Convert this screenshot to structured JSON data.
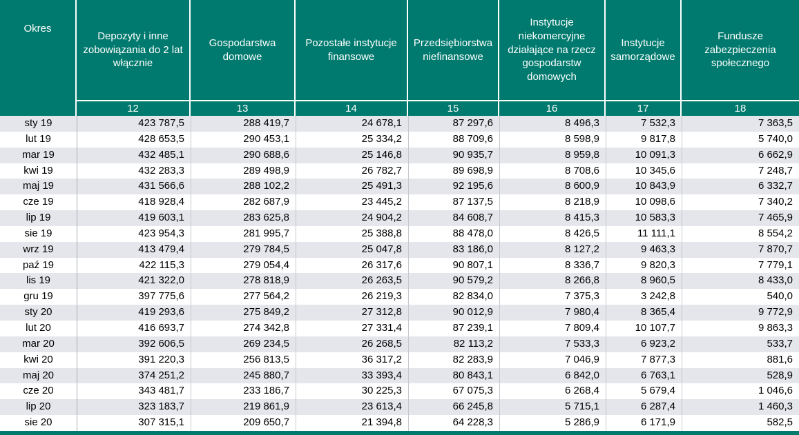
{
  "colors": {
    "header_bg": "#007A6E",
    "header_text": "#FFFFFF",
    "stripe_bg": "#E4E6EB",
    "row_bg": "#FFFFFF",
    "body_text": "#000000"
  },
  "table": {
    "period_column": {
      "label": "Okres"
    },
    "columns": [
      {
        "label": "Depozyty i inne zobowiązania do 2 lat włącznie",
        "code": "12"
      },
      {
        "label": "Gospodarstwa domowe",
        "code": "13"
      },
      {
        "label": "Pozostałe instytucje finansowe",
        "code": "14"
      },
      {
        "label": "Przedsiębiorstwa niefinansowe",
        "code": "15"
      },
      {
        "label": "Instytucje niekomercyjne działające na rzecz gospodarstw domowych",
        "code": "16"
      },
      {
        "label": "Instytucje samorządowe",
        "code": "17"
      },
      {
        "label": "Fundusze zabezpieczenia społecznego",
        "code": "18"
      }
    ],
    "rows": [
      {
        "period": "sty 19",
        "values": [
          "423 787,5",
          "288 419,7",
          "24 678,1",
          "87 297,6",
          "8 496,3",
          "7 532,3",
          "7 363,5"
        ]
      },
      {
        "period": "lut 19",
        "values": [
          "428 653,5",
          "290 453,1",
          "25 334,2",
          "88 709,6",
          "8 598,9",
          "9 817,8",
          "5 740,0"
        ]
      },
      {
        "period": "mar 19",
        "values": [
          "432 485,1",
          "290 688,6",
          "25 146,8",
          "90 935,7",
          "8 959,8",
          "10 091,3",
          "6 662,9"
        ]
      },
      {
        "period": "kwi 19",
        "values": [
          "432 283,3",
          "289 498,9",
          "26 782,7",
          "89 698,9",
          "8 708,6",
          "10 345,6",
          "7 248,7"
        ]
      },
      {
        "period": "maj 19",
        "values": [
          "431 566,6",
          "288 102,2",
          "25 491,3",
          "92 195,6",
          "8 600,9",
          "10 843,9",
          "6 332,7"
        ]
      },
      {
        "period": "cze 19",
        "values": [
          "418 928,4",
          "282 687,9",
          "23 445,2",
          "87 137,5",
          "8 218,9",
          "10 098,6",
          "7 340,2"
        ]
      },
      {
        "period": "lip 19",
        "values": [
          "419 603,1",
          "283 625,8",
          "24 904,2",
          "84 608,7",
          "8 415,3",
          "10 583,3",
          "7 465,9"
        ]
      },
      {
        "period": "sie 19",
        "values": [
          "423 954,3",
          "281 995,7",
          "25 388,8",
          "88 478,0",
          "8 426,5",
          "11 111,1",
          "8 554,2"
        ]
      },
      {
        "period": "wrz 19",
        "values": [
          "413 479,4",
          "279 784,5",
          "25 047,8",
          "83 186,0",
          "8 127,2",
          "9 463,3",
          "7 870,7"
        ]
      },
      {
        "period": "paź 19",
        "values": [
          "422 115,3",
          "279 054,4",
          "26 317,6",
          "90 807,1",
          "8 336,7",
          "9 820,3",
          "7 779,1"
        ]
      },
      {
        "period": "lis 19",
        "values": [
          "421 322,0",
          "278 818,9",
          "26 263,5",
          "90 579,2",
          "8 266,8",
          "8 960,5",
          "8 433,0"
        ]
      },
      {
        "period": "gru 19",
        "values": [
          "397 775,6",
          "277 564,2",
          "26 219,3",
          "82 834,0",
          "7 375,3",
          "3 242,8",
          "540,0"
        ]
      },
      {
        "period": "sty 20",
        "values": [
          "419 293,6",
          "275 849,2",
          "27 312,8",
          "90 012,9",
          "7 980,4",
          "8 365,4",
          "9 772,9"
        ]
      },
      {
        "period": "lut 20",
        "values": [
          "416 693,7",
          "274 342,8",
          "27 331,4",
          "87 239,1",
          "7 809,4",
          "10 107,7",
          "9 863,3"
        ]
      },
      {
        "period": "mar 20",
        "values": [
          "392 606,5",
          "269 234,5",
          "26 268,5",
          "82 113,2",
          "7 533,3",
          "6 923,2",
          "533,7"
        ]
      },
      {
        "period": "kwi 20",
        "values": [
          "391 220,3",
          "256 813,5",
          "36 317,2",
          "82 283,9",
          "7 046,9",
          "7 877,3",
          "881,6"
        ]
      },
      {
        "period": "maj 20",
        "values": [
          "374 251,2",
          "245 880,7",
          "33 393,4",
          "80 843,1",
          "6 842,0",
          "6 763,1",
          "528,9"
        ]
      },
      {
        "period": "cze 20",
        "values": [
          "343 481,7",
          "233 186,7",
          "30 225,3",
          "67 075,3",
          "6 268,4",
          "5 679,4",
          "1 046,6"
        ]
      },
      {
        "period": "lip 20",
        "values": [
          "323 183,7",
          "219 861,9",
          "23 613,4",
          "66 245,8",
          "5 715,1",
          "6 287,4",
          "1 460,3"
        ]
      },
      {
        "period": "sie 20",
        "values": [
          "307 315,1",
          "209 650,7",
          "21 394,8",
          "64 228,3",
          "5 286,9",
          "6 171,9",
          "582,5"
        ]
      }
    ]
  }
}
